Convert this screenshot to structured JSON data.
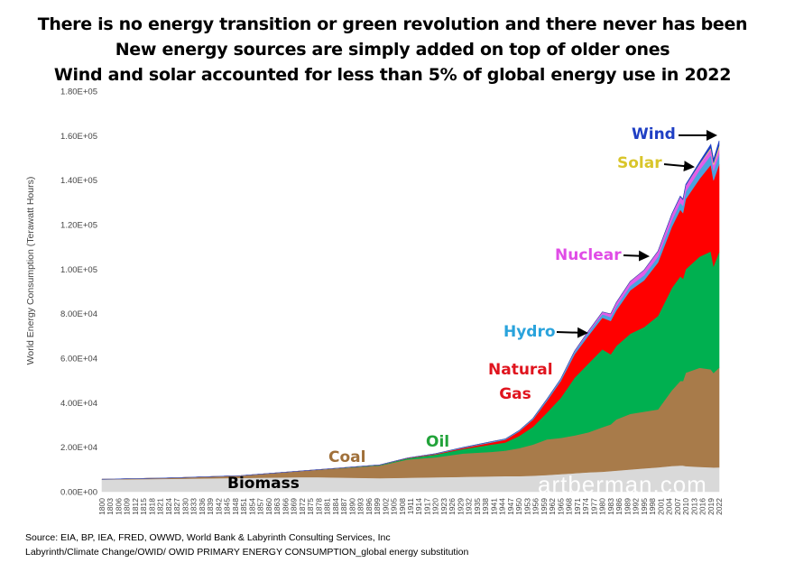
{
  "title_lines": [
    "There is no energy transition or green revolution and there never has been",
    "New energy sources are simply added on top of older ones",
    "Wind and solar accounted for less than 5% of global energy use in 2022"
  ],
  "source_lines": [
    "Source: EIA, BP, IEA, FRED, OWWD, World Bank & Labyrinth Consulting Services, Inc",
    "Labyrinth/Climate Change/OWID/ OWID PRIMARY ENERGY CONSUMPTION_global energy substitution"
  ],
  "watermark": "artberman.com",
  "chart_data": {
    "type": "area",
    "stacked": true,
    "title": "There is no energy transition or green revolution and there never has been",
    "xlabel": "",
    "ylabel": "World Energy Consumption (Terawatt Hours)",
    "ylim": [
      0,
      180000
    ],
    "xlim": [
      1800,
      2022
    ],
    "y_ticks": [
      "0.00E+00",
      "2.00E+04",
      "4.00E+04",
      "6.00E+04",
      "8.00E+04",
      "1.00E+05",
      "1.20E+05",
      "1.40E+05",
      "1.60E+05",
      "1.80E+05"
    ],
    "x_ticks": [
      "1800",
      "1803",
      "1806",
      "1809",
      "1812",
      "1815",
      "1818",
      "1821",
      "1824",
      "1827",
      "1830",
      "1833",
      "1836",
      "1839",
      "1842",
      "1845",
      "1848",
      "1851",
      "1854",
      "1857",
      "1860",
      "1863",
      "1866",
      "1869",
      "1872",
      "1875",
      "1878",
      "1881",
      "1884",
      "1887",
      "1890",
      "1893",
      "1896",
      "1899",
      "1902",
      "1905",
      "1908",
      "1911",
      "1914",
      "1917",
      "1920",
      "1923",
      "1926",
      "1929",
      "1932",
      "1935",
      "1938",
      "1941",
      "1944",
      "1947",
      "1950",
      "1953",
      "1956",
      "1959",
      "1962",
      "1965",
      "1968",
      "1971",
      "1974",
      "1977",
      "1980",
      "1983",
      "1986",
      "1989",
      "1992",
      "1995",
      "1998",
      "2001",
      "2004",
      "2007",
      "2010",
      "2013",
      "2016",
      "2019",
      "2022"
    ],
    "x": [
      1800,
      1825,
      1850,
      1875,
      1900,
      1910,
      1920,
      1930,
      1940,
      1945,
      1950,
      1955,
      1960,
      1965,
      1970,
      1975,
      1980,
      1983,
      1985,
      1990,
      1995,
      2000,
      2005,
      2008,
      2009,
      2010,
      2015,
      2019,
      2020,
      2022
    ],
    "series": [
      {
        "name": "Biomass",
        "color": "#d9d9d9",
        "values": [
          5500,
          5800,
          6200,
          6600,
          6100,
          6300,
          6500,
          6700,
          6900,
          7000,
          7000,
          7200,
          7500,
          7900,
          8300,
          8700,
          9000,
          9300,
          9500,
          10000,
          10500,
          11000,
          11600,
          11800,
          11800,
          11500,
          11200,
          11000,
          10900,
          11000
        ]
      },
      {
        "name": "Coal",
        "color": "#a87b4a",
        "values": [
          100,
          400,
          1000,
          3000,
          5700,
          8200,
          9000,
          10500,
          11000,
          11500,
          12600,
          14000,
          16000,
          16300,
          17000,
          18000,
          20000,
          21000,
          23000,
          25000,
          25500,
          26000,
          34000,
          38000,
          38000,
          42000,
          44500,
          44000,
          42500,
          44800
        ]
      },
      {
        "name": "Oil",
        "color": "#00b050",
        "values": [
          0,
          0,
          0,
          20,
          180,
          500,
          1200,
          2000,
          3300,
          3600,
          5400,
          8000,
          12000,
          18000,
          26000,
          31000,
          35000,
          31500,
          33000,
          36000,
          38000,
          42000,
          46000,
          47000,
          46000,
          46500,
          50000,
          53000,
          48000,
          52000
        ]
      },
      {
        "name": "Natural Gas",
        "color": "#ff0000",
        "values": [
          0,
          0,
          0,
          10,
          64,
          160,
          250,
          500,
          900,
          1200,
          2100,
          3200,
          5300,
          7500,
          10500,
          12500,
          14200,
          15000,
          16000,
          19500,
          21000,
          24000,
          27500,
          30000,
          29500,
          31500,
          35000,
          39000,
          38500,
          39400
        ]
      },
      {
        "name": "Hydro",
        "color": "#4aa3df",
        "values": [
          0,
          0,
          0,
          0,
          20,
          60,
          150,
          250,
          350,
          380,
          340,
          500,
          700,
          900,
          1200,
          1400,
          1600,
          1700,
          1800,
          2000,
          2300,
          2600,
          2900,
          3100,
          3200,
          3400,
          3900,
          4200,
          4300,
          4400
        ]
      },
      {
        "name": "Nuclear",
        "color": "#e25de8",
        "values": [
          0,
          0,
          0,
          0,
          0,
          0,
          0,
          0,
          0,
          0,
          0,
          0,
          5,
          60,
          230,
          650,
          1000,
          1400,
          1700,
          2000,
          2300,
          2500,
          2750,
          2700,
          2700,
          2800,
          2550,
          2800,
          2700,
          2700
        ]
      },
      {
        "name": "Solar",
        "color": "#f2e85a",
        "values": [
          0,
          0,
          0,
          0,
          0,
          0,
          0,
          0,
          0,
          0,
          0,
          0,
          0,
          0,
          0,
          0,
          0,
          0,
          0,
          0,
          0,
          1,
          5,
          13,
          20,
          34,
          260,
          710,
          850,
          1300
        ]
      },
      {
        "name": "Wind",
        "color": "#1f3fc4",
        "values": [
          0,
          0,
          0,
          0,
          0,
          0,
          0,
          0,
          0,
          0,
          0,
          0,
          0,
          0,
          0,
          0,
          0,
          0,
          0,
          4,
          8,
          31,
          100,
          220,
          280,
          350,
          840,
          1420,
          1600,
          2100
        ]
      }
    ],
    "annotations": [
      "Wind",
      "Solar",
      "Nuclear",
      "Hydro",
      "Natural Gas",
      "Oil",
      "Coal",
      "Biomass"
    ],
    "legend": "none (inline labels)",
    "grid": false
  }
}
